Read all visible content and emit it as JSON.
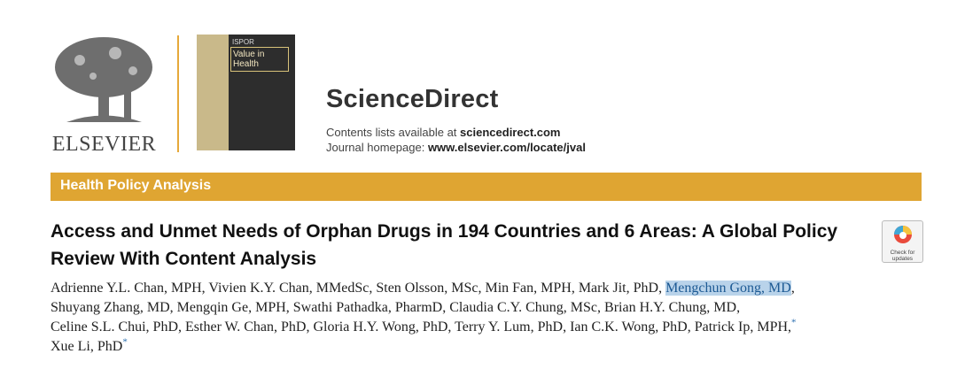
{
  "header": {
    "publisher": "ELSEVIER",
    "cover": {
      "brand": "ISPOR",
      "journal": "Value in Health"
    },
    "platform": "ScienceDirect",
    "contents_prefix": "Contents lists available at",
    "contents_link": "sciencedirect.com",
    "homepage_prefix": "Journal homepage:",
    "homepage_link": "www.elsevier.com/locate/jval"
  },
  "section": "Health Policy Analysis",
  "article": {
    "title": "Access and Unmet Needs of Orphan Drugs in 194 Countries and 6 Areas: A Global Policy Review With Content Analysis",
    "badge": "Check for updates",
    "separator": ",",
    "authors": [
      {
        "name": "Adrienne Y.L. Chan, MPH"
      },
      {
        "name": "Vivien K.Y. Chan, MMedSc"
      },
      {
        "name": "Sten Olsson, MSc"
      },
      {
        "name": "Min Fan, MPH"
      },
      {
        "name": "Mark Jit, PhD"
      },
      {
        "name": "Mengchun Gong, MD",
        "highlight": true
      },
      {
        "name": "Shuyang Zhang, MD"
      },
      {
        "name": "Mengqin Ge, MPH"
      },
      {
        "name": "Swathi Pathadka, PharmD"
      },
      {
        "name": "Claudia C.Y. Chung, MSc"
      },
      {
        "name": "Brian H.Y. Chung, MD"
      },
      {
        "name": "Celine S.L. Chui, PhD"
      },
      {
        "name": "Esther W. Chan, PhD"
      },
      {
        "name": "Gloria H.Y. Wong, PhD"
      },
      {
        "name": "Terry Y. Lum, PhD"
      },
      {
        "name": "Ian C.K. Wong, PhD"
      },
      {
        "name": "Patrick Ip, MPH",
        "mark": "*"
      },
      {
        "name": "Xue Li, PhD",
        "mark": "*"
      }
    ]
  }
}
